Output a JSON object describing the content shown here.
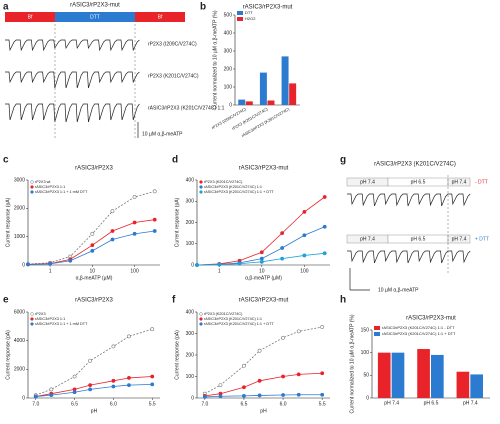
{
  "panel_labels": [
    "a",
    "b",
    "c",
    "d",
    "e",
    "f",
    "g",
    "h"
  ],
  "panel_a": {
    "title": "rASIC3/rP2X3-mut",
    "bar": [
      "Bf",
      "DTT",
      "Bf"
    ],
    "traces": [
      "rP2X3 (I209C/V274C)",
      "rP2X3 (K201C/V274C)",
      "rASIC3/rP2X3 (K201C/V274C) 1:1"
    ],
    "scale": "10 µM α,β-meATP"
  },
  "panel_g": {
    "title": "rASIC3/rP2X3 (K201C/V274C)",
    "conditions": [
      "pH 7.4",
      "pH 6.5",
      "pH 7.4"
    ],
    "rows": [
      "- DTT",
      "+ DTT"
    ],
    "scale": "10 µM α,β-meATP"
  },
  "chart_data": [
    {
      "type": "bar",
      "title": "rASIC3/rP2X3-mut",
      "ylabel": "Current normalized to 10 µM α,β-meATP (%)",
      "categories": [
        "rP2X3 (I209C/V274C)",
        "rP2X3 (K201C/V274C)",
        "rASIC3/rP2X3 (K201C/V274C)"
      ],
      "series": [
        {
          "name": "DTT",
          "color": "#2b7bd0",
          "values": [
            30,
            180,
            270
          ]
        },
        {
          "name": "H2O2",
          "color": "#e8232a",
          "values": [
            20,
            25,
            120
          ]
        }
      ],
      "ylim": [
        0,
        500
      ],
      "yticks": [
        0,
        100,
        200,
        300,
        400,
        500
      ]
    },
    {
      "type": "line",
      "title": "rASIC3/rP2X3",
      "xlabel": "α,β-meATP (µM)",
      "ylabel": "Current response (pA)",
      "x": [
        0.3,
        1,
        3,
        10,
        30,
        100,
        300
      ],
      "xlog": true,
      "xlim": [
        0.3,
        400
      ],
      "xticks": [
        1,
        10,
        100
      ],
      "ylim": [
        0,
        3000
      ],
      "yticks": [
        0,
        1000,
        2000,
        3000
      ],
      "series": [
        {
          "name": "rP2X3 wt",
          "color": "#777777",
          "line_style": "dashed",
          "marker": "open",
          "values": [
            30,
            80,
            300,
            1100,
            1900,
            2400,
            2600
          ]
        },
        {
          "name": "rASIC3/rP2X3 1:1",
          "color": "#e8232a",
          "line_style": "solid",
          "marker": "filled",
          "values": [
            20,
            50,
            200,
            700,
            1200,
            1500,
            1600
          ]
        },
        {
          "name": "rASIC3/rP2X3 1:1 + 1 mM DTT",
          "color": "#2b7bd0",
          "line_style": "solid",
          "marker": "filled",
          "values": [
            20,
            40,
            150,
            500,
            900,
            1100,
            1200
          ]
        }
      ]
    },
    {
      "type": "line",
      "title": "rASIC3/rP2X3-mut",
      "xlabel": "α,β-meATP (µM)",
      "ylabel": "Current response (pA)",
      "x": [
        0.3,
        1,
        3,
        10,
        30,
        100,
        300
      ],
      "xlog": true,
      "xlim": [
        0.3,
        400
      ],
      "xticks": [
        1,
        10,
        100
      ],
      "ylim": [
        0,
        400
      ],
      "yticks": [
        0,
        100,
        200,
        300,
        400
      ],
      "series": [
        {
          "name": "rP2X3 (K201C/V274C)",
          "color": "#e8232a",
          "line_style": "solid",
          "marker": "filled",
          "values": [
            0,
            5,
            20,
            60,
            150,
            250,
            320
          ]
        },
        {
          "name": "rASIC3/rP2X3 (K201C/V274C) 1:1",
          "color": "#2b7bd0",
          "line_style": "solid",
          "marker": "filled",
          "values": [
            0,
            3,
            10,
            30,
            80,
            140,
            180
          ]
        },
        {
          "name": "rASIC3/rP2X3 (K201C/V274C) 1:1 + DTT",
          "color": "#1aa3d9",
          "line_style": "solid",
          "marker": "filled",
          "values": [
            0,
            2,
            6,
            15,
            30,
            45,
            55
          ]
        }
      ]
    },
    {
      "type": "line",
      "title": "rASIC3/rP2X3",
      "xlabel": "pH",
      "ylabel": "Current response (pA)",
      "x": [
        7.0,
        6.8,
        6.5,
        6.3,
        6.0,
        5.8,
        5.5
      ],
      "xlog": false,
      "xlim": [
        7.1,
        5.4
      ],
      "xticks": [
        {
          "value": 7,
          "label": "7.0"
        },
        6.5,
        {
          "value": 6,
          "label": "6.0"
        },
        5.5
      ],
      "ylim": [
        0,
        6000
      ],
      "yticks": [
        0,
        2000,
        4000,
        6000
      ],
      "series": [
        {
          "name": "rP2X3",
          "color": "#777777",
          "line_style": "dashed",
          "marker": "open",
          "values": [
            200,
            600,
            1500,
            2600,
            3600,
            4300,
            4800
          ]
        },
        {
          "name": "rASIC3/rP2X3 1:1",
          "color": "#e8232a",
          "line_style": "solid",
          "marker": "filled",
          "values": [
            100,
            300,
            600,
            900,
            1200,
            1400,
            1500
          ]
        },
        {
          "name": "rASIC3/rP2X3 1:1 + 1 mM DTT",
          "color": "#2b7bd0",
          "line_style": "solid",
          "marker": "filled",
          "values": [
            100,
            200,
            400,
            600,
            800,
            900,
            950
          ]
        }
      ]
    },
    {
      "type": "line",
      "title": "rASIC3/rP2X3-mut",
      "xlabel": "pH",
      "ylabel": "Current response (pA)",
      "x": [
        7.0,
        6.8,
        6.5,
        6.3,
        6.0,
        5.8,
        5.5
      ],
      "xlog": false,
      "xlim": [
        7.1,
        5.4
      ],
      "xticks": [
        {
          "value": 7,
          "label": "7.0"
        },
        6.5,
        {
          "value": 6,
          "label": "6.0"
        },
        5.5
      ],
      "ylim": [
        0,
        400
      ],
      "yticks": [
        0,
        100,
        200,
        300,
        400
      ],
      "series": [
        {
          "name": "rP2X3 (K201C/V274C)",
          "color": "#777777",
          "line_style": "dashed",
          "marker": "open",
          "values": [
            20,
            60,
            150,
            220,
            280,
            310,
            330
          ]
        },
        {
          "name": "rASIC3/rP2X3 (K201C/V274C) 1:1",
          "color": "#e8232a",
          "line_style": "solid",
          "marker": "filled",
          "values": [
            10,
            20,
            50,
            80,
            100,
            110,
            115
          ]
        },
        {
          "name": "rASIC3/rP2X3 (K201C/V274C) 1:1 + DTT",
          "color": "#2b7bd0",
          "line_style": "solid",
          "marker": "filled",
          "values": [
            5,
            8,
            10,
            12,
            14,
            15,
            15
          ]
        }
      ]
    },
    {
      "type": "bar",
      "title": "rASIC3/rP2X3-mut",
      "ylabel": "Current normalized to 10 µM α,β-meATP (%)",
      "categories": [
        "pH 7.4",
        "pH 6.5",
        "pH 7.4"
      ],
      "series": [
        {
          "name": "rASIC3/rP2X3 (K201C/V274C) 1:1 - DTT",
          "color": "#e8232a",
          "values": [
            100,
            108,
            58
          ]
        },
        {
          "name": "rASIC3/rP2X3 (K201C/V274C) 1:1 + DTT",
          "color": "#2b7bd0",
          "values": [
            100,
            95,
            52
          ]
        }
      ],
      "ylim": [
        0,
        150
      ],
      "yticks": [
        0,
        50,
        100,
        150
      ]
    }
  ]
}
